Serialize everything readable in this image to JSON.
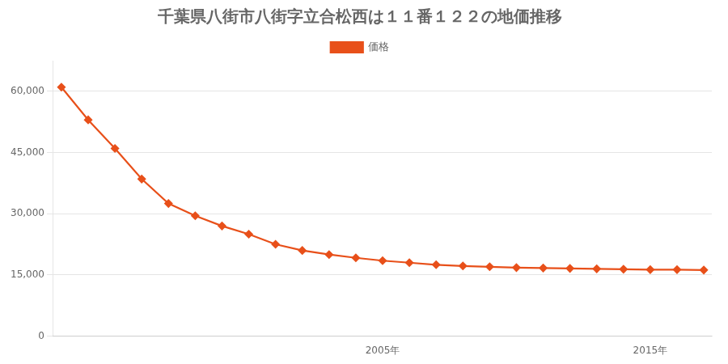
{
  "chart_data": {
    "type": "line",
    "title": "千葉県八街市八街字立合松西は１１番１２２の地価推移",
    "legend": "top",
    "grid": "y",
    "x": [
      1993,
      1994,
      1995,
      1996,
      1997,
      1998,
      1999,
      2000,
      2001,
      2002,
      2003,
      2004,
      2005,
      2006,
      2007,
      2008,
      2009,
      2010,
      2011,
      2012,
      2013,
      2014,
      2015,
      2016,
      2017
    ],
    "series": [
      {
        "name": "価格",
        "color": "#e8501a",
        "marker": "diamond",
        "values": [
          61000,
          53000,
          46000,
          38500,
          32500,
          29500,
          27000,
          25000,
          22500,
          21000,
          20000,
          19200,
          18500,
          18000,
          17500,
          17200,
          17000,
          16800,
          16700,
          16600,
          16500,
          16400,
          16300,
          16300,
          16200
        ]
      }
    ],
    "xlim": [
      1992.7,
      2017.3
    ],
    "xticks": [
      {
        "value": 2005,
        "label": "2005年"
      },
      {
        "value": 2015,
        "label": "2015年"
      }
    ],
    "ylim": [
      0,
      67500
    ],
    "yticks": [
      0,
      {
        "value": 15000,
        "label": "15,000"
      },
      {
        "value": 30000,
        "label": "30,000"
      },
      {
        "value": 45000,
        "label": "45,000"
      },
      {
        "value": 60000,
        "label": "60,000"
      }
    ]
  }
}
